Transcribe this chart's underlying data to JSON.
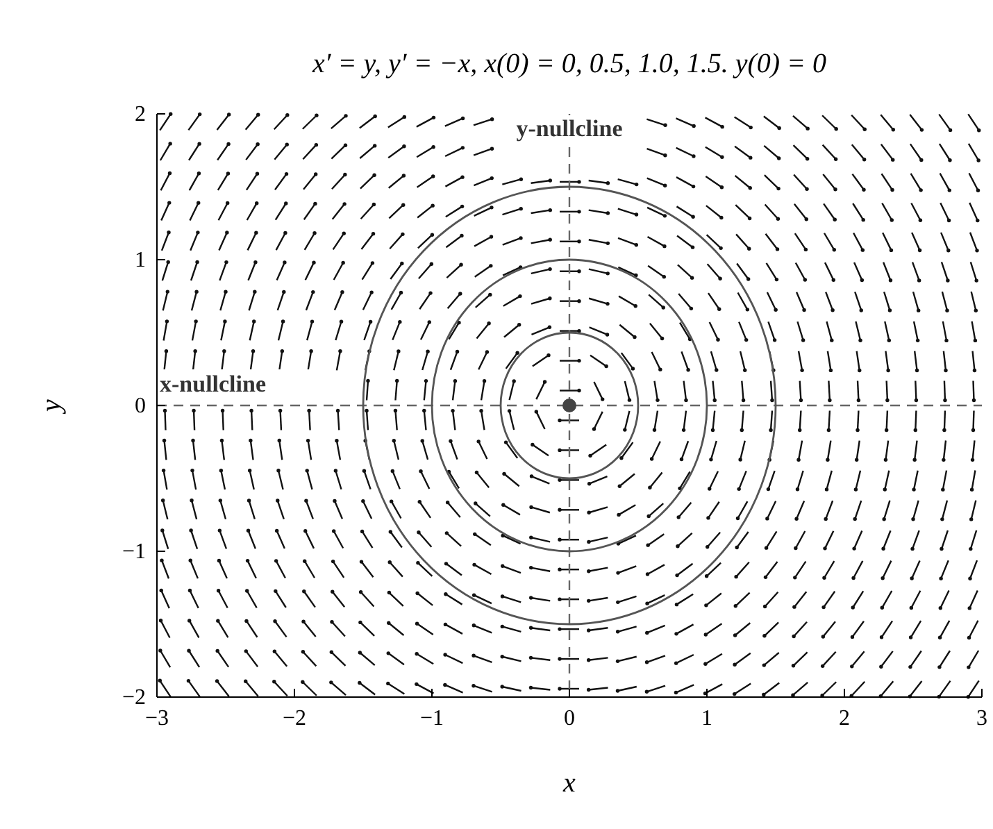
{
  "chart_data": {
    "type": "scatter",
    "title": "x′ = y,    y′ = −x,        x(0) = 0, 0.5, 1.0, 1.5.  y(0) = 0",
    "xlabel": "x",
    "ylabel": "y",
    "xlim": [
      -3,
      3
    ],
    "ylim": [
      -2,
      2
    ],
    "xticks": [
      -3,
      -2,
      -1,
      0,
      1,
      2,
      3
    ],
    "yticks": [
      -2,
      -1,
      0,
      1,
      2
    ],
    "ref_lines": [
      {
        "axis": "x",
        "value": 0,
        "label": "y-nullcline",
        "line_style": "dashed",
        "color": "#666666"
      },
      {
        "axis": "y",
        "value": 0,
        "label": "x-nullcline",
        "line_style": "dashed",
        "color": "#666666"
      }
    ],
    "series": [
      {
        "color": "#444444",
        "x": [
          0
        ],
        "values": [
          0
        ]
      }
    ]
  }
}
